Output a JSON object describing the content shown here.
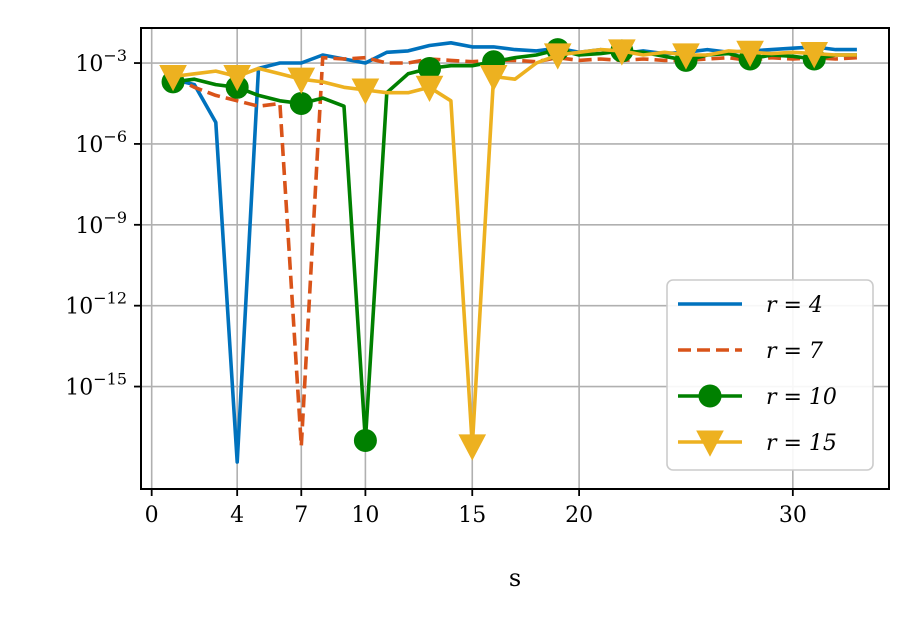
{
  "chart_data": {
    "type": "line",
    "title": "",
    "xlabel": "s",
    "ylabel": "",
    "yscale": "log",
    "xlim": [
      -0.5,
      34.5
    ],
    "ylim_exp": [
      -18.8,
      -1.7
    ],
    "grid": true,
    "legend_position": "lower-right",
    "x_ticks": [
      0,
      4,
      7,
      10,
      15,
      20,
      30
    ],
    "y_ticks": [
      {
        "exp": -3,
        "label": "10",
        "sup": "−3"
      },
      {
        "exp": -6,
        "label": "10",
        "sup": "−6"
      },
      {
        "exp": -9,
        "label": "10",
        "sup": "−9"
      },
      {
        "exp": -12,
        "label": "10",
        "sup": "−12"
      },
      {
        "exp": -15,
        "label": "10",
        "sup": "−15"
      }
    ],
    "series": [
      {
        "name": "r = 4",
        "color": "#0072BD",
        "dash": "solid",
        "marker": "none",
        "x": [
          1,
          2,
          3,
          4,
          5,
          6,
          7,
          8,
          9,
          10,
          11,
          12,
          13,
          14,
          15,
          16,
          17,
          18,
          19,
          20,
          21,
          22,
          23,
          24,
          25,
          26,
          27,
          28,
          29,
          30,
          31,
          32,
          33
        ],
        "y_exp": [
          -3.6,
          -3.8,
          -5.2,
          -17.8,
          -3.2,
          -3.0,
          -3.0,
          -2.7,
          -2.85,
          -3.0,
          -2.6,
          -2.55,
          -2.35,
          -2.25,
          -2.4,
          -2.4,
          -2.5,
          -2.55,
          -2.45,
          -2.6,
          -2.5,
          -2.65,
          -2.55,
          -2.65,
          -2.6,
          -2.5,
          -2.6,
          -2.55,
          -2.5,
          -2.45,
          -2.4,
          -2.5,
          -2.5
        ]
      },
      {
        "name": "r = 7",
        "color": "#D95319",
        "dash": "dashed",
        "marker": "none",
        "x": [
          1,
          2,
          3,
          4,
          5,
          6,
          7,
          8,
          9,
          10,
          11,
          12,
          13,
          14,
          15,
          16,
          17,
          18,
          19,
          20,
          21,
          22,
          23,
          24,
          25,
          26,
          27,
          28,
          29,
          30,
          31,
          32,
          33
        ],
        "y_exp": [
          -3.5,
          -3.9,
          -4.2,
          -4.4,
          -4.6,
          -4.5,
          -17.2,
          -2.8,
          -2.85,
          -2.8,
          -3.0,
          -3.0,
          -2.85,
          -2.9,
          -2.95,
          -2.9,
          -2.9,
          -2.95,
          -2.8,
          -2.9,
          -2.85,
          -2.9,
          -2.85,
          -2.9,
          -2.9,
          -2.85,
          -2.8,
          -2.9,
          -2.8,
          -2.85,
          -2.8,
          -2.85,
          -2.8
        ]
      },
      {
        "name": "r = 10",
        "color": "#008000",
        "dash": "solid",
        "marker": "circle",
        "x": [
          1,
          2,
          3,
          4,
          5,
          6,
          7,
          8,
          9,
          10,
          11,
          12,
          13,
          14,
          15,
          16,
          17,
          18,
          19,
          20,
          21,
          22,
          23,
          24,
          25,
          26,
          27,
          28,
          29,
          30,
          31,
          32,
          33
        ],
        "y_exp": [
          -3.7,
          -3.6,
          -3.8,
          -3.9,
          -4.2,
          -4.4,
          -4.5,
          -4.3,
          -4.6,
          -17.0,
          -4.1,
          -3.4,
          -3.2,
          -3.1,
          -3.1,
          -2.95,
          -2.8,
          -2.7,
          -2.5,
          -2.7,
          -2.65,
          -2.55,
          -2.6,
          -2.75,
          -2.9,
          -2.7,
          -2.65,
          -2.85,
          -2.7,
          -2.75,
          -2.85,
          -2.7,
          -2.7
        ]
      },
      {
        "name": "r = 15",
        "color": "#EDB120",
        "dash": "solid",
        "marker": "triangle-down",
        "x": [
          1,
          2,
          3,
          4,
          5,
          6,
          7,
          8,
          9,
          10,
          11,
          12,
          13,
          14,
          15,
          16,
          17,
          18,
          19,
          20,
          21,
          22,
          23,
          24,
          25,
          26,
          27,
          28,
          29,
          30,
          31,
          32,
          33
        ],
        "y_exp": [
          -3.5,
          -3.4,
          -3.3,
          -3.5,
          -3.2,
          -3.4,
          -3.6,
          -3.7,
          -3.9,
          -4.0,
          -4.1,
          -4.1,
          -3.9,
          -4.4,
          -17.2,
          -3.5,
          -3.6,
          -3.0,
          -2.7,
          -2.6,
          -2.5,
          -2.55,
          -2.7,
          -2.6,
          -2.7,
          -2.7,
          -2.55,
          -2.6,
          -2.65,
          -2.6,
          -2.65,
          -2.7,
          -2.7
        ]
      }
    ]
  }
}
